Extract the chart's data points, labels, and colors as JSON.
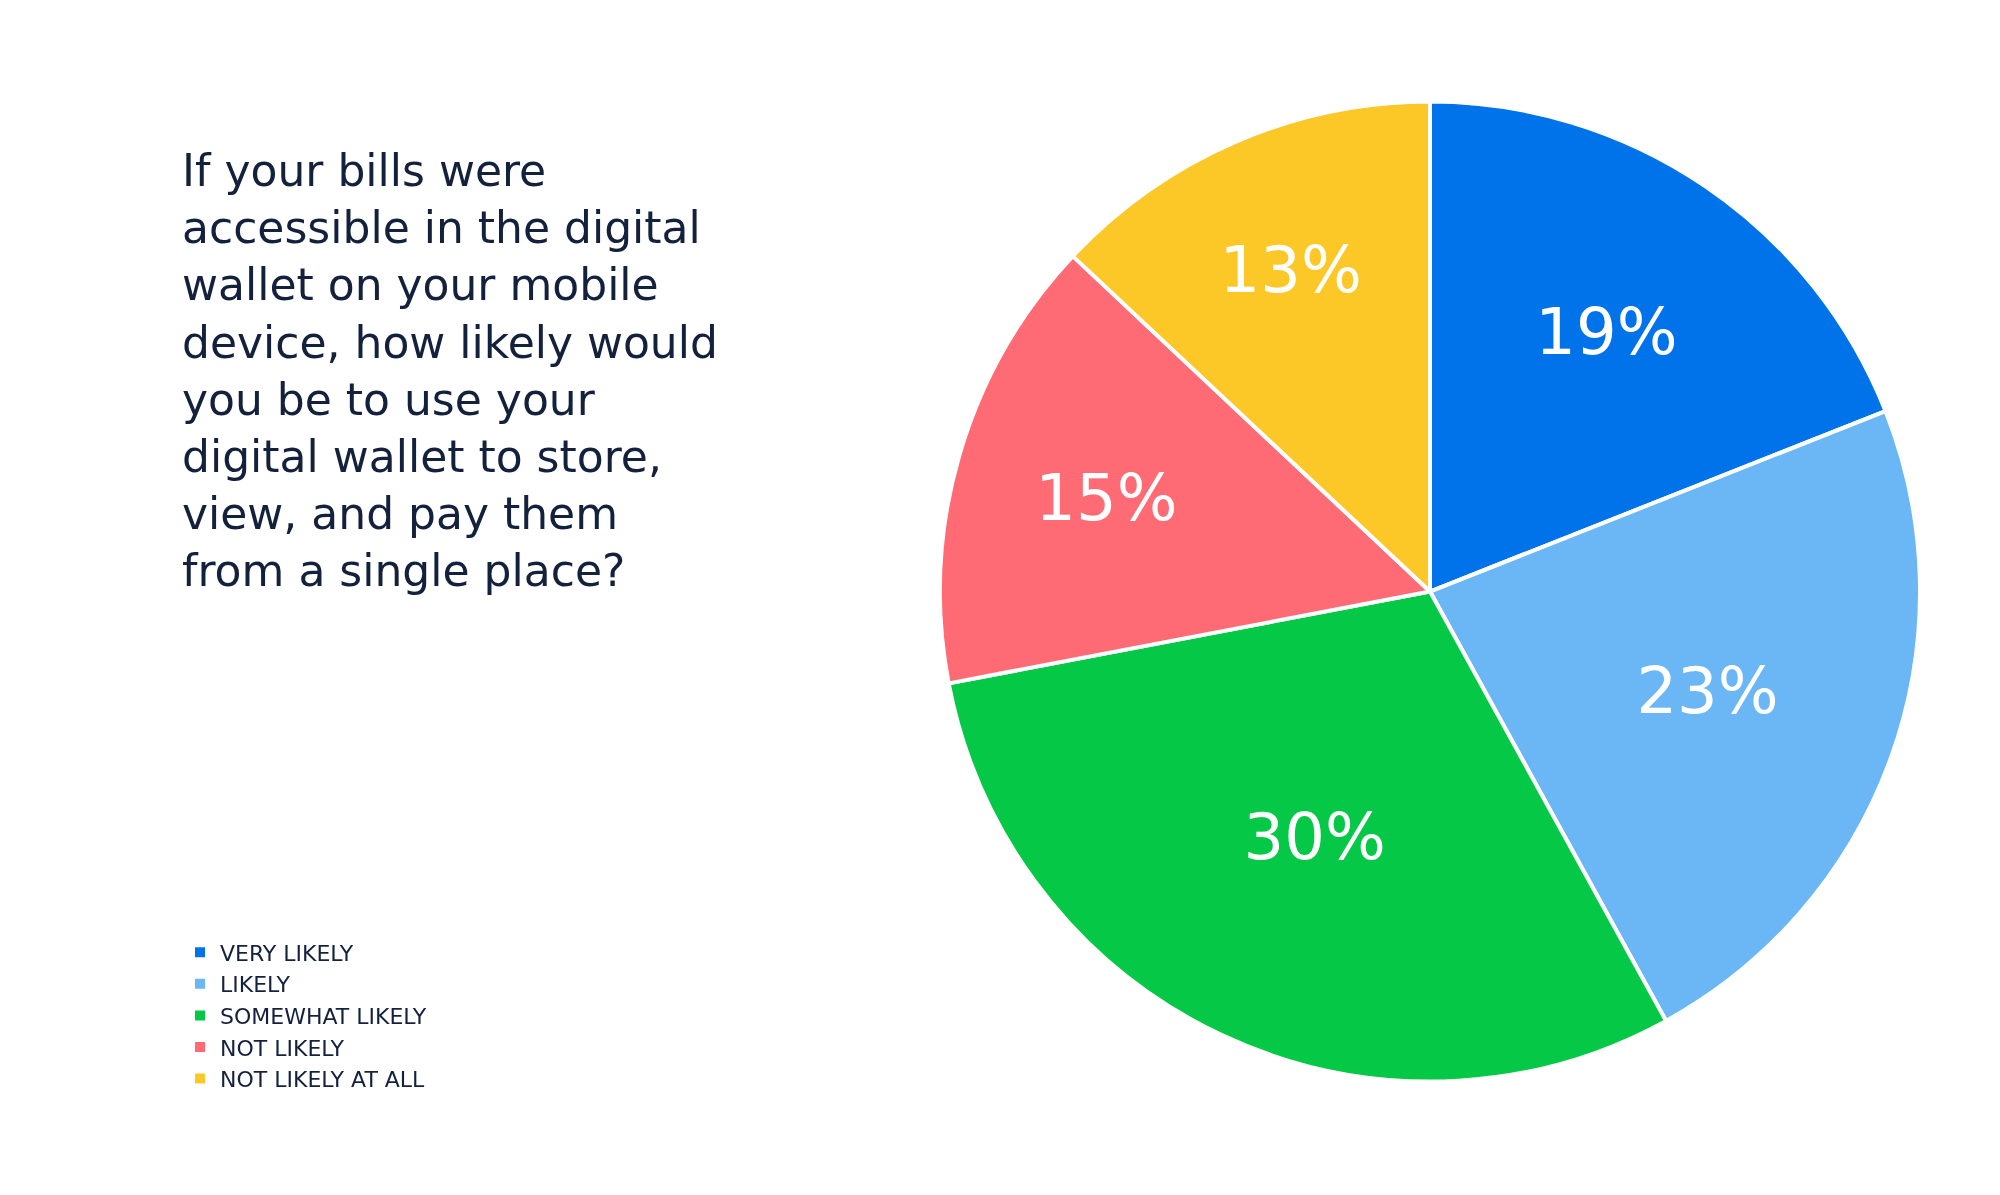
{
  "chart_data": {
    "type": "pie",
    "title": "If your bills were\naccessible in the digital\nwallet on your mobile\ndevice, how likely would\nyou be to use your\ndigital wallet to store,\nview, and pay them\nfrom a single place?",
    "categories": [
      "VERY LIKELY",
      "LIKELY",
      "SOMEWHAT LIKELY",
      "NOT LIKELY",
      "NOT LIKELY AT ALL"
    ],
    "values": [
      19,
      23,
      30,
      15,
      13
    ],
    "value_labels": [
      "19%",
      "23%",
      "30%",
      "15%",
      "13%"
    ],
    "colors": [
      "#0073ea",
      "#6bb7f5",
      "#05c846",
      "#ff6b74",
      "#fbc828"
    ],
    "legend": "bottom left"
  }
}
